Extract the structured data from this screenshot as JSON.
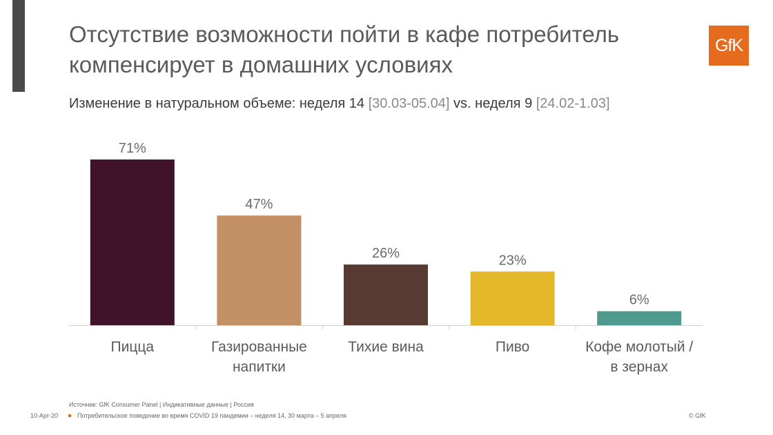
{
  "title": "Отсутствие возможности пойти в кафе потребитель компенсирует в домашних условиях",
  "logo": "GfK",
  "subtitle": {
    "part1": "Изменение в натуральном объеме: неделя 14 ",
    "part2": "[30.03-05.04]",
    "part3": " vs. неделя 9 ",
    "part4": "[24.02-1.03]"
  },
  "chart_data": {
    "type": "bar",
    "categories": [
      "Пицца",
      "Газированные напитки",
      "Тихие вина",
      "Пиво",
      "Кофе молотый / в зернах"
    ],
    "category_lines": [
      [
        "Пицца"
      ],
      [
        "Газированные",
        "напитки"
      ],
      [
        "Тихие вина"
      ],
      [
        "Пиво"
      ],
      [
        "Кофе молотый /",
        "в зернах"
      ]
    ],
    "values": [
      71,
      47,
      26,
      23,
      6
    ],
    "value_labels": [
      "71%",
      "47%",
      "26%",
      "23%",
      "6%"
    ],
    "colors": [
      "#40132a",
      "#c39066",
      "#573a31",
      "#e3b82a",
      "#4f9a8f"
    ],
    "ylim": [
      0,
      71
    ],
    "grid": false
  },
  "footer": {
    "source": "Источник: GfK Consumer Panel | Индикативные данные | Россия",
    "date": "10-Apr-20",
    "text": "Потребительское поведение во время COVID 19 пандемии – неделя 14, 30 марта – 5 апреля",
    "copyright": "© GfK"
  }
}
